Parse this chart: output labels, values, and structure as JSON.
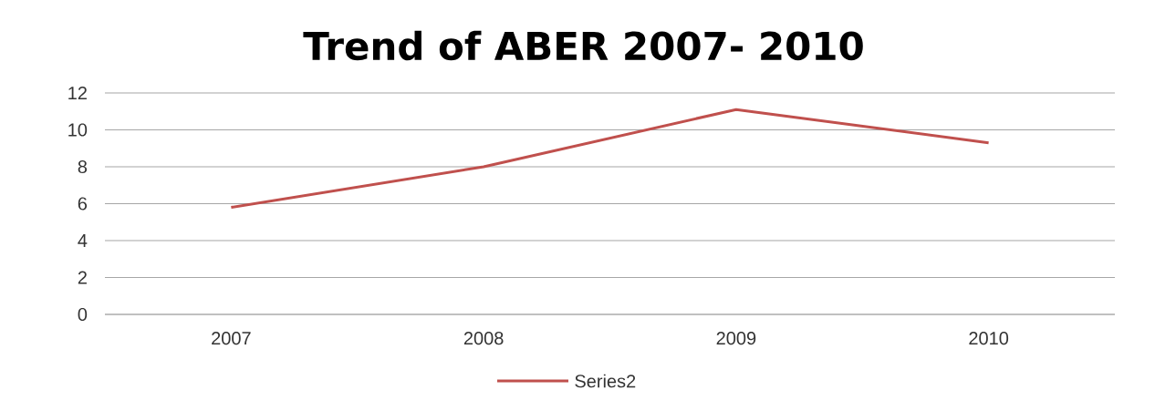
{
  "chart_data": {
    "type": "line",
    "title": "Trend of ABER 2007- 2010",
    "categories": [
      "2007",
      "2008",
      "2009",
      "2010"
    ],
    "series": [
      {
        "name": "Series2",
        "color": "#c0504d",
        "values": [
          5.8,
          8.0,
          11.1,
          9.3
        ]
      }
    ],
    "ylim": [
      0,
      12
    ],
    "yticks": [
      0,
      2,
      4,
      6,
      8,
      10,
      12
    ],
    "grid": "y",
    "legend": "bottom",
    "marker": "none",
    "line_style": "solid"
  }
}
